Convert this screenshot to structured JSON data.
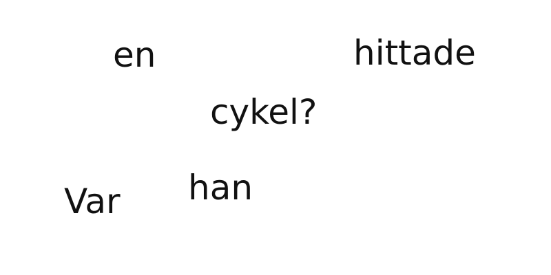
{
  "words": [
    "en",
    "hittade",
    "cykel?",
    "han",
    "Var"
  ],
  "text_color": "#111111",
  "background_color": "#ffffff"
}
